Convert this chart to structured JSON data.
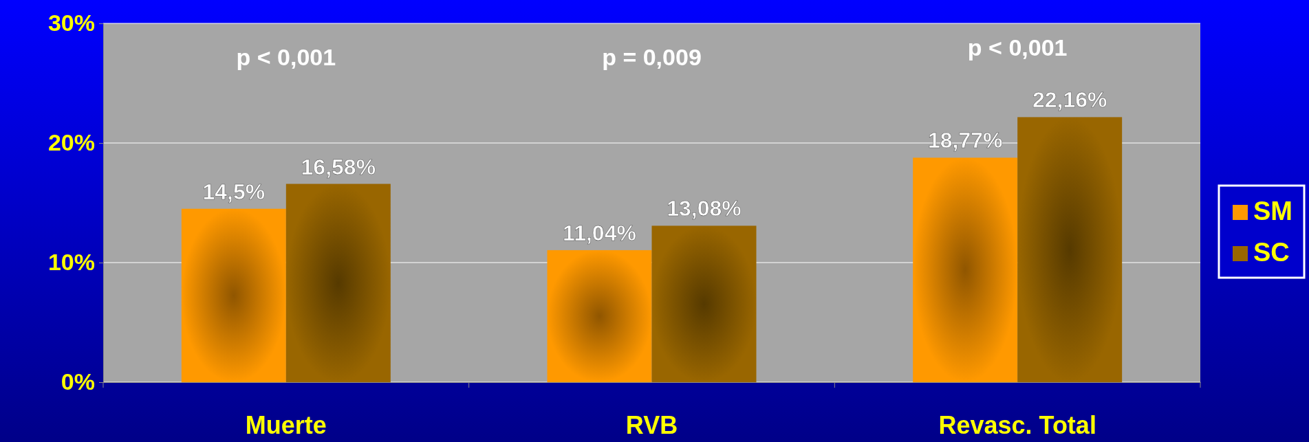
{
  "chart_data": {
    "type": "bar",
    "categories": [
      "Muerte",
      "RVB",
      "Revasc. Total"
    ],
    "series": [
      {
        "name": "SM",
        "color": "#ff9900",
        "values": [
          14.5,
          11.04,
          18.77
        ],
        "value_labels": [
          "14,5%",
          "11,04%",
          "18,77%"
        ]
      },
      {
        "name": "SC",
        "color": "#996600",
        "values": [
          16.58,
          13.08,
          22.16
        ],
        "value_labels": [
          "16,58%",
          "13,08%",
          "22,16%"
        ]
      }
    ],
    "ylim": [
      0,
      30
    ],
    "yticks": [
      {
        "value": 0,
        "label": "0%"
      },
      {
        "value": 10,
        "label": "10%"
      },
      {
        "value": 20,
        "label": "20%"
      },
      {
        "value": 30,
        "label": "30%"
      }
    ],
    "grid": "y",
    "legend": "right",
    "annotations": [
      "p < 0,001",
      "p = 0,009",
      "p < 0,001"
    ]
  }
}
